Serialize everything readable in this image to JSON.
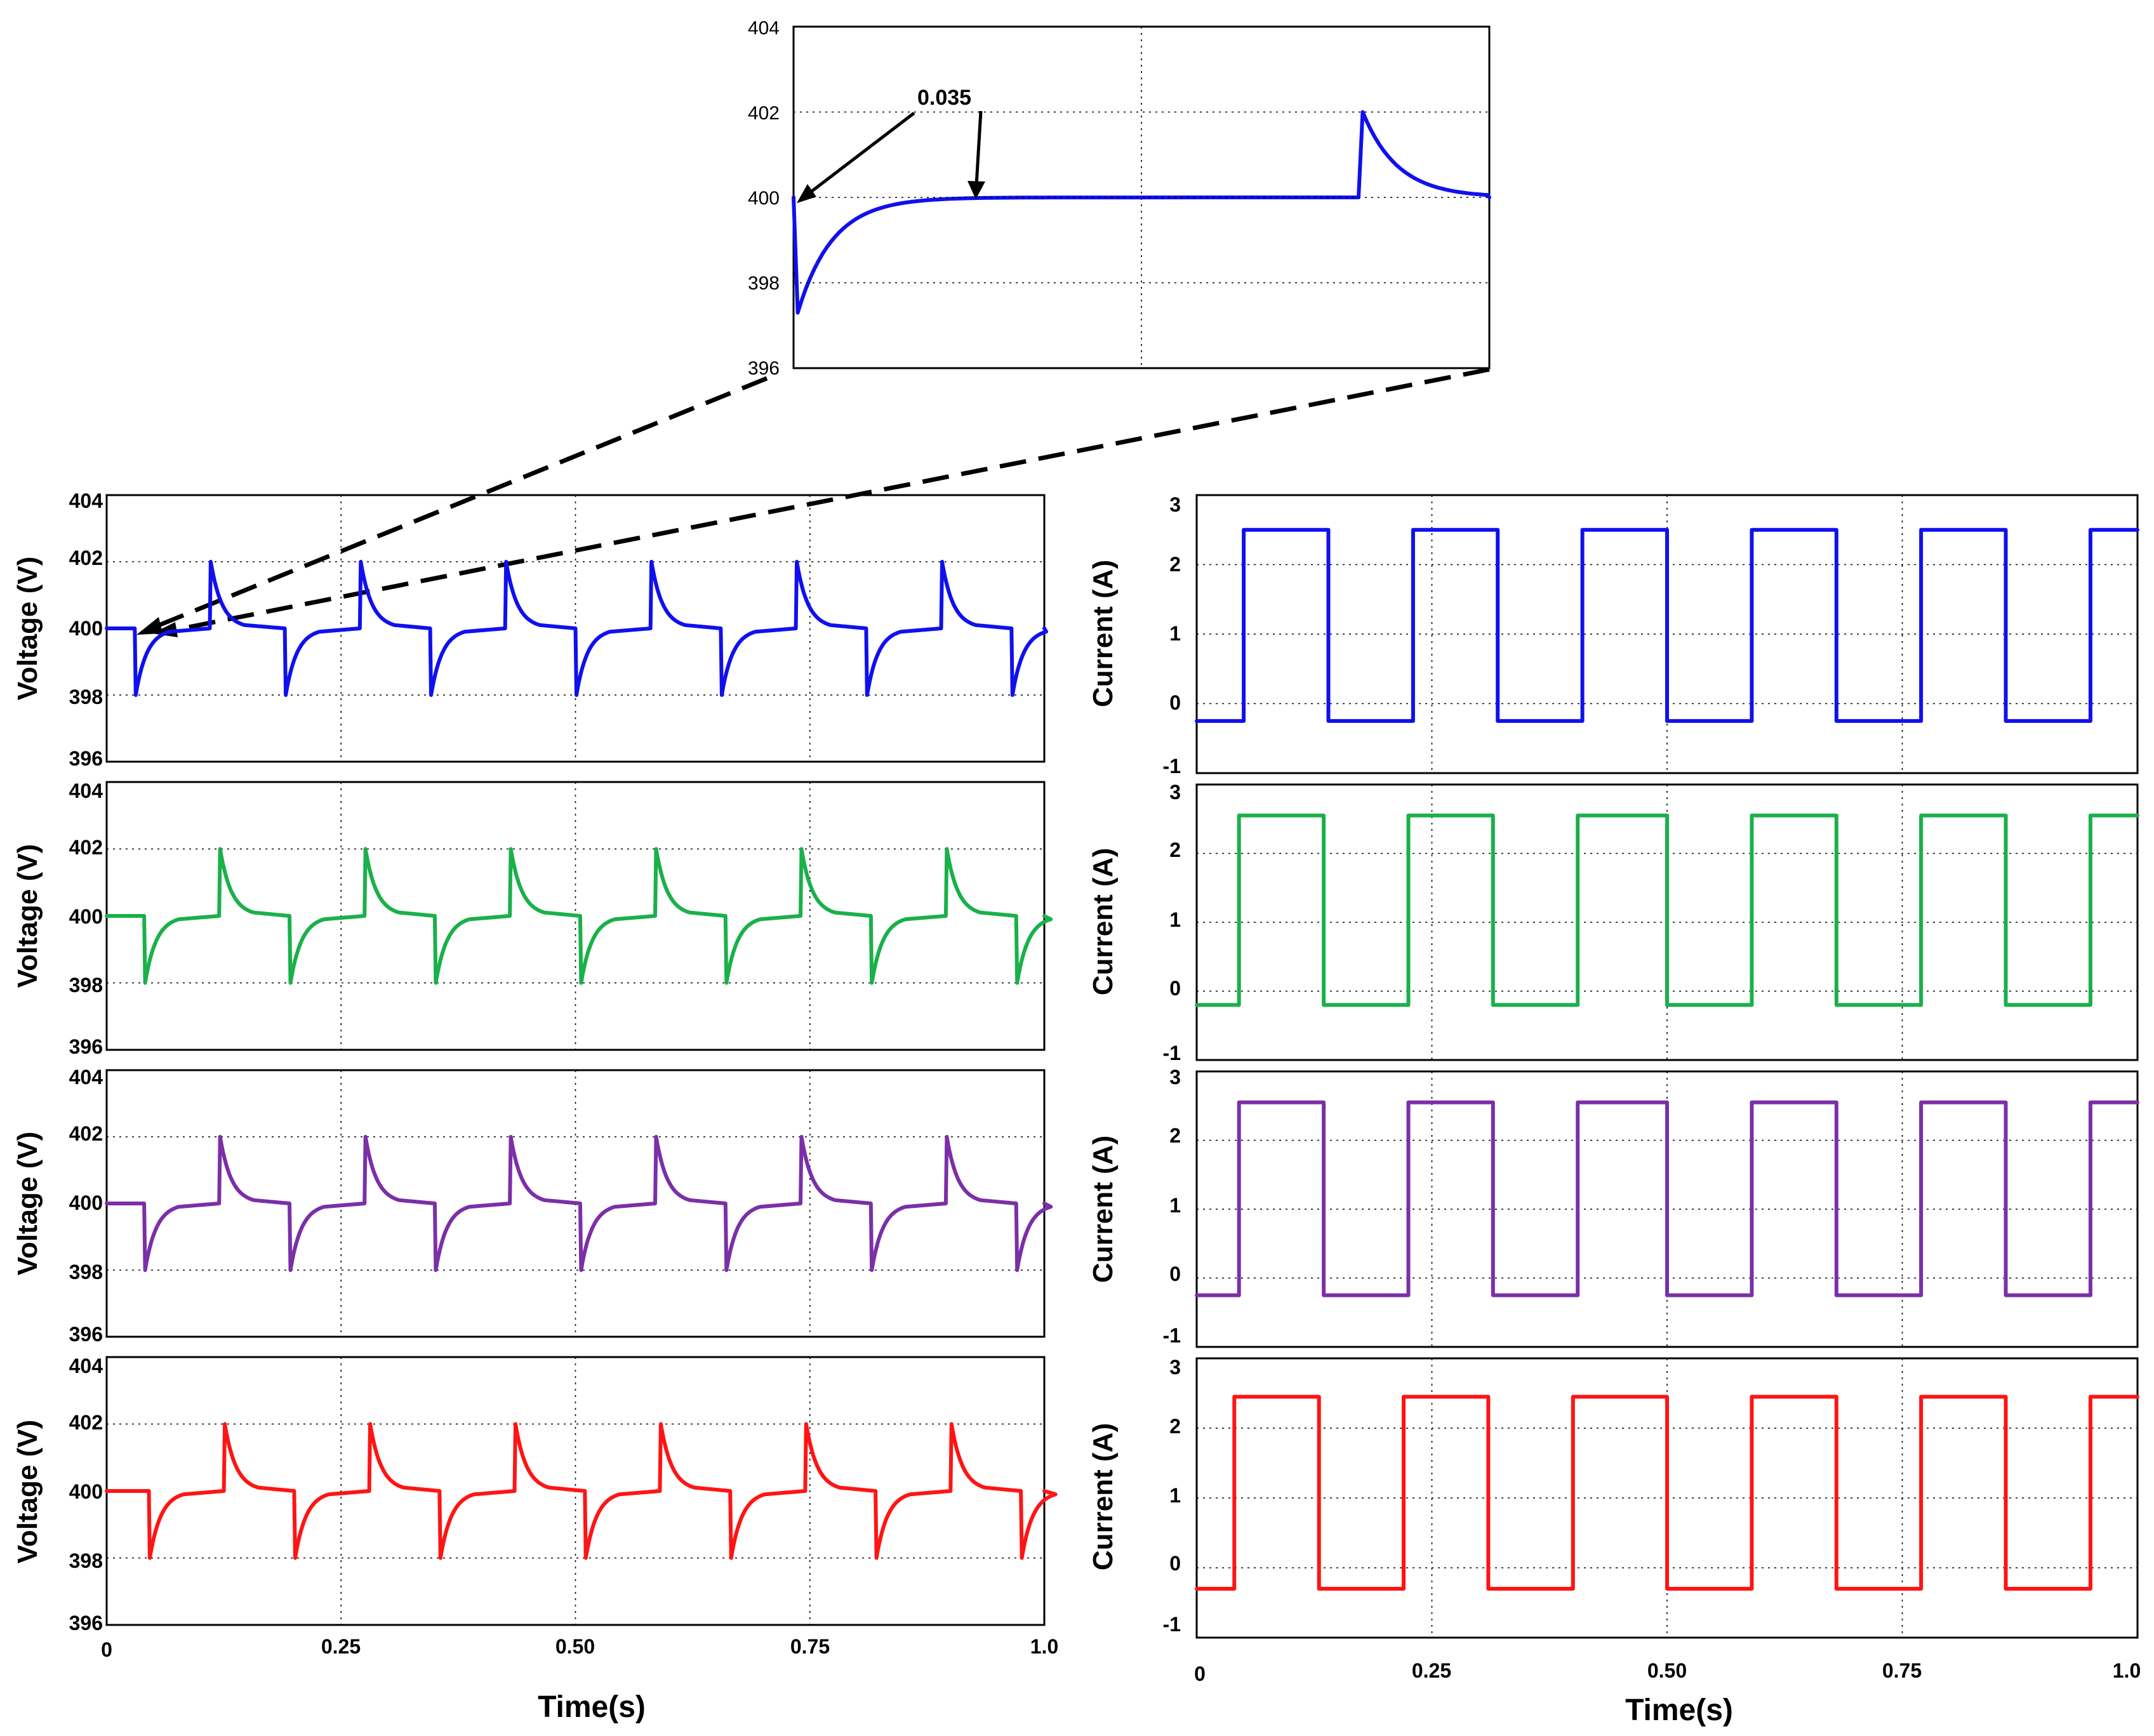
{
  "chart_data": [
    {
      "id": "zoom",
      "type": "line",
      "title": "",
      "ylabel": "",
      "yticks": [
        "404",
        "402",
        "400",
        "398",
        "396"
      ],
      "ylim": [
        396,
        404
      ],
      "annotation": "0.035",
      "color": "#1010ee",
      "series": [
        {
          "name": "Voltage (zoom)",
          "shape": "dip-recover-then-spike",
          "dip_min": 397.3,
          "spike_max": 402.0,
          "steady": 400
        }
      ]
    },
    {
      "id": "v1",
      "type": "line",
      "ylabel": "Voltage (V)",
      "yticks": [
        "404",
        "402",
        "400",
        "398",
        "396"
      ],
      "ylim": [
        396,
        404
      ],
      "color": "#1010ee",
      "dips": [
        0.03,
        0.19,
        0.345,
        0.5,
        0.655,
        0.81,
        0.965
      ],
      "spikes": [
        0.11,
        0.27,
        0.425,
        0.58,
        0.735,
        0.89
      ],
      "steady": 400,
      "dip_min": 398,
      "spike_max": 402
    },
    {
      "id": "v2",
      "type": "line",
      "ylabel": "Voltage (V)",
      "yticks": [
        "404",
        "402",
        "400",
        "398",
        "396"
      ],
      "ylim": [
        396,
        404
      ],
      "color": "#1ab04a",
      "dips": [
        0.04,
        0.195,
        0.35,
        0.505,
        0.66,
        0.815,
        0.97
      ],
      "spikes": [
        0.12,
        0.275,
        0.43,
        0.585,
        0.74,
        0.895
      ],
      "steady": 400,
      "dip_min": 398,
      "spike_max": 402
    },
    {
      "id": "v3",
      "type": "line",
      "ylabel": "Voltage (V)",
      "yticks": [
        "404",
        "402",
        "400",
        "398",
        "396"
      ],
      "ylim": [
        396,
        404
      ],
      "color": "#7b2fa8",
      "dips": [
        0.04,
        0.195,
        0.35,
        0.505,
        0.66,
        0.815,
        0.97
      ],
      "spikes": [
        0.12,
        0.275,
        0.43,
        0.585,
        0.74,
        0.895
      ],
      "steady": 400,
      "dip_min": 398,
      "spike_max": 402
    },
    {
      "id": "v4",
      "type": "line",
      "ylabel": "Voltage (V)",
      "yticks": [
        "404",
        "402",
        "400",
        "398",
        "396"
      ],
      "ylim": [
        396,
        404
      ],
      "color": "#ff1414",
      "dips": [
        0.045,
        0.2,
        0.355,
        0.51,
        0.665,
        0.82,
        0.975
      ],
      "spikes": [
        0.125,
        0.28,
        0.435,
        0.59,
        0.745,
        0.9
      ],
      "steady": 400,
      "dip_min": 398,
      "spike_max": 402
    },
    {
      "id": "c1",
      "type": "line",
      "ylabel": "Current (A)",
      "yticks": [
        "3",
        "2",
        "1",
        "0",
        "-1"
      ],
      "ylim": [
        -1,
        3
      ],
      "color": "#1010ee",
      "high": 2.5,
      "low": -0.25,
      "edges": [
        0.05,
        0.14,
        0.23,
        0.32,
        0.41,
        0.5,
        0.59,
        0.68,
        0.77,
        0.86,
        0.95
      ]
    },
    {
      "id": "c2",
      "type": "line",
      "ylabel": "Current (A)",
      "yticks": [
        "3",
        "2",
        "1",
        "0",
        "-1"
      ],
      "ylim": [
        -1,
        3
      ],
      "color": "#1ab04a",
      "high": 2.55,
      "low": -0.2,
      "edges": [
        0.045,
        0.135,
        0.225,
        0.315,
        0.405,
        0.5,
        0.59,
        0.68,
        0.77,
        0.86,
        0.95
      ]
    },
    {
      "id": "c3",
      "type": "line",
      "ylabel": "Current (A)",
      "yticks": [
        "3",
        "2",
        "1",
        "0",
        "-1"
      ],
      "ylim": [
        -1,
        3
      ],
      "color": "#7b2fa8",
      "high": 2.55,
      "low": -0.25,
      "edges": [
        0.045,
        0.135,
        0.225,
        0.315,
        0.405,
        0.5,
        0.59,
        0.68,
        0.77,
        0.86,
        0.95
      ]
    },
    {
      "id": "c4",
      "type": "line",
      "ylabel": "Current (A)",
      "yticks": [
        "3",
        "2",
        "1",
        "0",
        "-1"
      ],
      "ylim": [
        -1,
        3
      ],
      "color": "#ff1414",
      "high": 2.45,
      "low": -0.3,
      "edges": [
        0.04,
        0.13,
        0.22,
        0.31,
        0.4,
        0.5,
        0.59,
        0.68,
        0.77,
        0.86,
        0.95
      ]
    }
  ],
  "xaxis": {
    "xticks": [
      "0",
      "0.25",
      "0.50",
      "0.75",
      "1.0"
    ],
    "xlabel": "Time(s)",
    "xlim": [
      0,
      1
    ]
  }
}
